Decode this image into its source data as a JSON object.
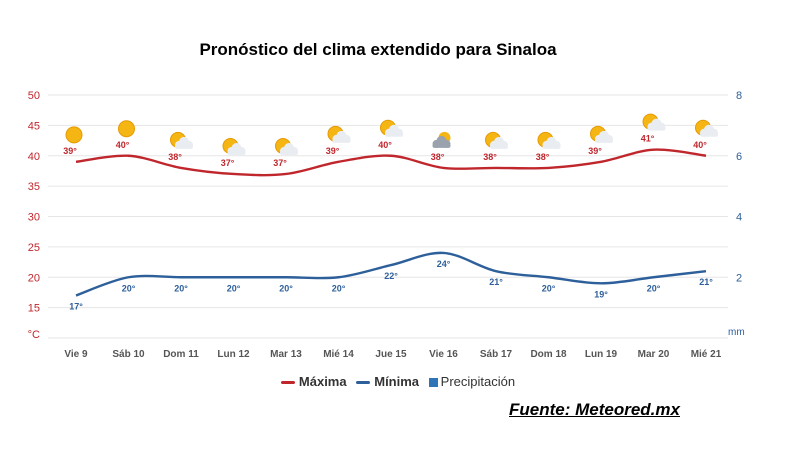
{
  "title": "Pronóstico del clima extendido para Sinaloa",
  "source": "Fuente: Meteored.mx",
  "legend": {
    "max": "Máxima",
    "min": "Mínima",
    "precip": "Precipitación"
  },
  "colors": {
    "max": "#c0272d",
    "min": "#2d5f9a",
    "precip": "#2f74b5",
    "grid": "#e6e6e6",
    "axis_left": "#c0272d",
    "axis_right": "#2d5f9a",
    "day_label": "#555555"
  },
  "chart_data": {
    "type": "line",
    "title": "Pronóstico del clima extendido para Sinaloa",
    "categories": [
      "Vie 9",
      "Sáb 10",
      "Dom 11",
      "Lun 12",
      "Mar 13",
      "Mié 14",
      "Jue 15",
      "Vie 16",
      "Sáb 17",
      "Dom 18",
      "Lun 19",
      "Mar 20",
      "Mié 21"
    ],
    "series": [
      {
        "name": "Máxima",
        "values": [
          39,
          40,
          38,
          37,
          37,
          39,
          40,
          38,
          38,
          38,
          39,
          41,
          40
        ],
        "labels": [
          "39°",
          "40°",
          "38°",
          "37°",
          "37°",
          "39°",
          "40°",
          "38°",
          "38°",
          "38°",
          "39°",
          "41°",
          "40°"
        ]
      },
      {
        "name": "Mínima",
        "values": [
          17,
          20,
          20,
          20,
          20,
          20,
          22,
          24,
          21,
          20,
          19,
          20,
          21
        ],
        "labels": [
          "17°",
          "20°",
          "20°",
          "20°",
          "20°",
          "20°",
          "22°",
          "24°",
          "21°",
          "20°",
          "19°",
          "20°",
          "21°"
        ]
      }
    ],
    "weather_icons": [
      "sun",
      "sun",
      "sun-cloud",
      "sun-cloud",
      "sun-cloud",
      "sun-cloud",
      "sun-cloud",
      "cloud-sun",
      "sun-cloud",
      "sun-cloud",
      "sun-cloud",
      "sun-cloud",
      "sun-cloud"
    ],
    "left_axis": {
      "ticks": [
        "50",
        "45",
        "40",
        "35",
        "30",
        "25",
        "20",
        "15"
      ],
      "values": [
        50,
        45,
        40,
        35,
        30,
        25,
        20,
        15
      ],
      "unit": "°C",
      "range": [
        10,
        50
      ]
    },
    "right_axis": {
      "ticks": [
        "8",
        "6",
        "4",
        "2"
      ],
      "values": [
        8,
        6,
        4,
        2
      ],
      "unit": "mm",
      "range": [
        0,
        8
      ]
    },
    "ylabel": "°C",
    "y2label": "mm",
    "grid": true
  }
}
